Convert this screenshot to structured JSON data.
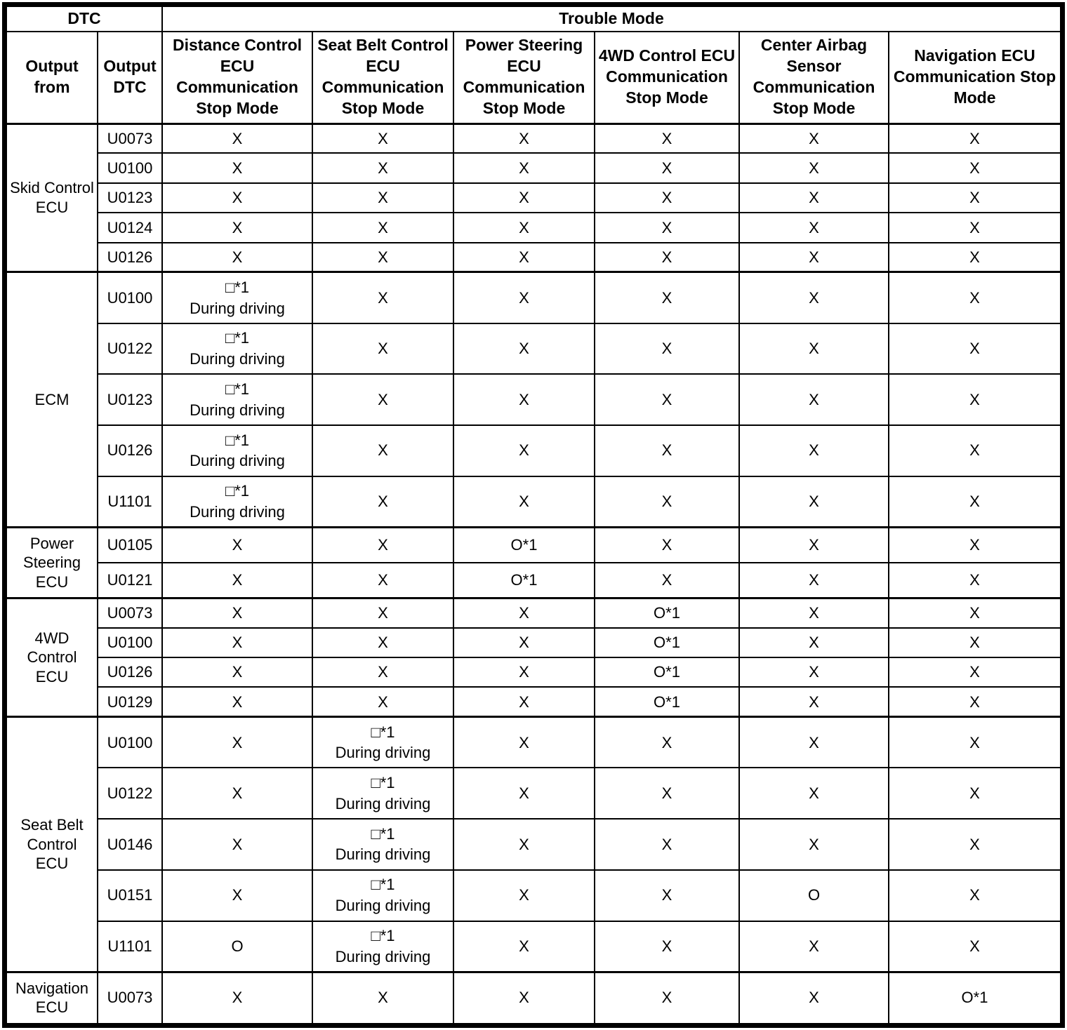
{
  "header": {
    "dtc_label": "DTC",
    "trouble_mode_label": "Trouble Mode",
    "output_from_label": "Output from",
    "output_dtc_label": "Output DTC",
    "mode_columns": [
      "Distance Control ECU Communication Stop Mode",
      "Seat Belt Control ECU Communication Stop Mode",
      "Power Steering ECU Communication Stop Mode",
      "4WD Control ECU Communication Stop Mode",
      "Center Airbag Sensor Communication Stop Mode",
      "Navigation ECU Communication Stop Mode"
    ]
  },
  "symbols": {
    "not_applicable": "X",
    "applicable": "O",
    "applicable_note1": "O*1",
    "conditional_note1": "□*1\nDuring driving"
  },
  "groups": [
    {
      "output_from": "Skid Control ECU",
      "rows": [
        {
          "dtc": "U0073",
          "cells": [
            "X",
            "X",
            "X",
            "X",
            "X",
            "X"
          ]
        },
        {
          "dtc": "U0100",
          "cells": [
            "X",
            "X",
            "X",
            "X",
            "X",
            "X"
          ]
        },
        {
          "dtc": "U0123",
          "cells": [
            "X",
            "X",
            "X",
            "X",
            "X",
            "X"
          ]
        },
        {
          "dtc": "U0124",
          "cells": [
            "X",
            "X",
            "X",
            "X",
            "X",
            "X"
          ]
        },
        {
          "dtc": "U0126",
          "cells": [
            "X",
            "X",
            "X",
            "X",
            "X",
            "X"
          ]
        }
      ]
    },
    {
      "output_from": "ECM",
      "rows": [
        {
          "dtc": "U0100",
          "cells": [
            "□*1\nDuring driving",
            "X",
            "X",
            "X",
            "X",
            "X"
          ]
        },
        {
          "dtc": "U0122",
          "cells": [
            "□*1\nDuring driving",
            "X",
            "X",
            "X",
            "X",
            "X"
          ]
        },
        {
          "dtc": "U0123",
          "cells": [
            "□*1\nDuring driving",
            "X",
            "X",
            "X",
            "X",
            "X"
          ]
        },
        {
          "dtc": "U0126",
          "cells": [
            "□*1\nDuring driving",
            "X",
            "X",
            "X",
            "X",
            "X"
          ]
        },
        {
          "dtc": "U1101",
          "cells": [
            "□*1\nDuring driving",
            "X",
            "X",
            "X",
            "X",
            "X"
          ]
        }
      ]
    },
    {
      "output_from": "Power Steering ECU",
      "rows": [
        {
          "dtc": "U0105",
          "cells": [
            "X",
            "X",
            "O*1",
            "X",
            "X",
            "X"
          ]
        },
        {
          "dtc": "U0121",
          "cells": [
            "X",
            "X",
            "O*1",
            "X",
            "X",
            "X"
          ]
        }
      ]
    },
    {
      "output_from": "4WD Control ECU",
      "rows": [
        {
          "dtc": "U0073",
          "cells": [
            "X",
            "X",
            "X",
            "O*1",
            "X",
            "X"
          ]
        },
        {
          "dtc": "U0100",
          "cells": [
            "X",
            "X",
            "X",
            "O*1",
            "X",
            "X"
          ]
        },
        {
          "dtc": "U0126",
          "cells": [
            "X",
            "X",
            "X",
            "O*1",
            "X",
            "X"
          ]
        },
        {
          "dtc": "U0129",
          "cells": [
            "X",
            "X",
            "X",
            "O*1",
            "X",
            "X"
          ]
        }
      ]
    },
    {
      "output_from": "Seat Belt Control ECU",
      "rows": [
        {
          "dtc": "U0100",
          "cells": [
            "X",
            "□*1\nDuring driving",
            "X",
            "X",
            "X",
            "X"
          ]
        },
        {
          "dtc": "U0122",
          "cells": [
            "X",
            "□*1\nDuring driving",
            "X",
            "X",
            "X",
            "X"
          ]
        },
        {
          "dtc": "U0146",
          "cells": [
            "X",
            "□*1\nDuring driving",
            "X",
            "X",
            "X",
            "X"
          ]
        },
        {
          "dtc": "U0151",
          "cells": [
            "X",
            "□*1\nDuring driving",
            "X",
            "X",
            "O",
            "X"
          ]
        },
        {
          "dtc": "U1101",
          "cells": [
            "O",
            "□*1\nDuring driving",
            "X",
            "X",
            "X",
            "X"
          ]
        }
      ]
    },
    {
      "output_from": "Navigation ECU",
      "rows": [
        {
          "dtc": "U0073",
          "cells": [
            "X",
            "X",
            "X",
            "X",
            "X",
            "O*1"
          ]
        }
      ]
    }
  ]
}
